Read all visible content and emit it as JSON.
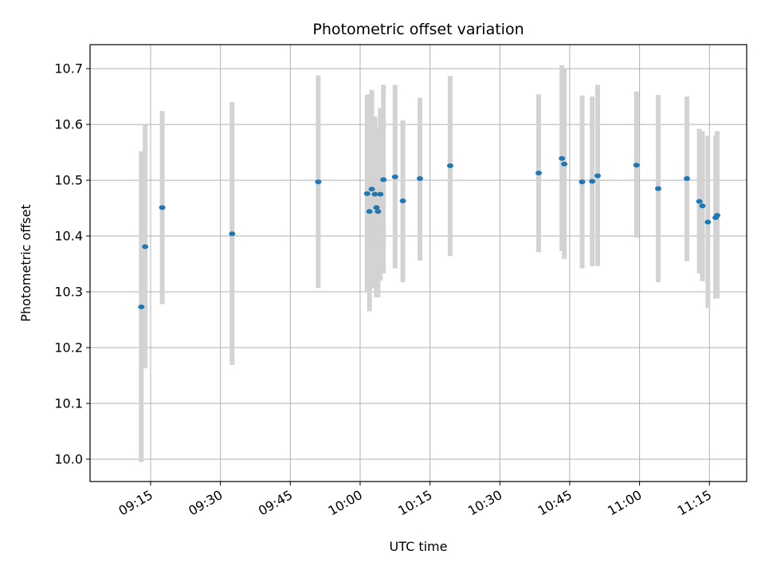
{
  "chart_data": {
    "type": "scatter",
    "title": "Photometric offset variation",
    "xlabel": "UTC time",
    "ylabel": "Photometric offset",
    "x_unit": "UTC time (HH:MM)",
    "xlim": [
      "09:02",
      "11:23"
    ],
    "ylim": [
      9.96,
      10.743
    ],
    "grid": true,
    "x_ticks": [
      "09:15",
      "09:30",
      "09:45",
      "10:00",
      "10:15",
      "10:30",
      "10:45",
      "11:00",
      "11:15"
    ],
    "y_ticks": [
      "10.0",
      "10.1",
      "10.2",
      "10.3",
      "10.4",
      "10.5",
      "10.6",
      "10.7"
    ],
    "colors": {
      "point": "#1f77b4",
      "errorbar": "#d3d3d3",
      "grid": "#b0b0b0"
    },
    "points": [
      {
        "t": "09:13:00",
        "y": 10.273,
        "err_low": 9.995,
        "err_high": 10.552
      },
      {
        "t": "09:13:50",
        "y": 10.381,
        "err_low": 10.163,
        "err_high": 10.6
      },
      {
        "t": "09:17:30",
        "y": 10.451,
        "err_low": 10.278,
        "err_high": 10.624
      },
      {
        "t": "09:32:30",
        "y": 10.404,
        "err_low": 10.169,
        "err_high": 10.64
      },
      {
        "t": "09:51:00",
        "y": 10.497,
        "err_low": 10.307,
        "err_high": 10.688
      },
      {
        "t": "10:01:30",
        "y": 10.476,
        "err_low": 10.3,
        "err_high": 10.653
      },
      {
        "t": "10:02:00",
        "y": 10.444,
        "err_low": 10.265,
        "err_high": 10.654
      },
      {
        "t": "10:02:30",
        "y": 10.484,
        "err_low": 10.306,
        "err_high": 10.662
      },
      {
        "t": "10:03:10",
        "y": 10.475,
        "err_low": 10.335,
        "err_high": 10.614
      },
      {
        "t": "10:03:30",
        "y": 10.451,
        "err_low": 10.29,
        "err_high": 10.594
      },
      {
        "t": "10:03:50",
        "y": 10.444,
        "err_low": 10.29,
        "err_high": 10.58
      },
      {
        "t": "10:04:20",
        "y": 10.475,
        "err_low": 10.32,
        "err_high": 10.63
      },
      {
        "t": "10:05:00",
        "y": 10.501,
        "err_low": 10.333,
        "err_high": 10.671
      },
      {
        "t": "10:07:30",
        "y": 10.506,
        "err_low": 10.342,
        "err_high": 10.671
      },
      {
        "t": "10:09:10",
        "y": 10.463,
        "err_low": 10.317,
        "err_high": 10.607
      },
      {
        "t": "10:12:50",
        "y": 10.503,
        "err_low": 10.356,
        "err_high": 10.648
      },
      {
        "t": "10:19:20",
        "y": 10.526,
        "err_low": 10.364,
        "err_high": 10.687
      },
      {
        "t": "10:38:20",
        "y": 10.513,
        "err_low": 10.371,
        "err_high": 10.654
      },
      {
        "t": "10:43:20",
        "y": 10.539,
        "err_low": 10.373,
        "err_high": 10.706
      },
      {
        "t": "10:43:50",
        "y": 10.529,
        "err_low": 10.359,
        "err_high": 10.7
      },
      {
        "t": "10:47:40",
        "y": 10.497,
        "err_low": 10.342,
        "err_high": 10.652
      },
      {
        "t": "10:49:50",
        "y": 10.498,
        "err_low": 10.346,
        "err_high": 10.65
      },
      {
        "t": "10:51:00",
        "y": 10.508,
        "err_low": 10.346,
        "err_high": 10.671
      },
      {
        "t": "10:59:20",
        "y": 10.527,
        "err_low": 10.397,
        "err_high": 10.659
      },
      {
        "t": "11:04:00",
        "y": 10.485,
        "err_low": 10.317,
        "err_high": 10.653
      },
      {
        "t": "11:10:10",
        "y": 10.503,
        "err_low": 10.355,
        "err_high": 10.65
      },
      {
        "t": "11:12:50",
        "y": 10.462,
        "err_low": 10.333,
        "err_high": 10.592
      },
      {
        "t": "11:13:30",
        "y": 10.454,
        "err_low": 10.319,
        "err_high": 10.588
      },
      {
        "t": "11:14:40",
        "y": 10.425,
        "err_low": 10.271,
        "err_high": 10.58
      },
      {
        "t": "11:16:20",
        "y": 10.433,
        "err_low": 10.288,
        "err_high": 10.58
      },
      {
        "t": "11:16:40",
        "y": 10.437,
        "err_low": 10.288,
        "err_high": 10.588
      }
    ]
  }
}
